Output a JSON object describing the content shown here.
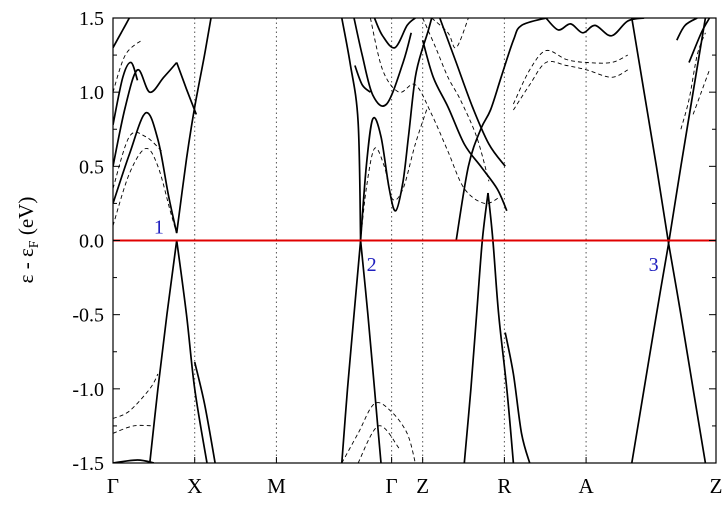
{
  "chart_data": {
    "type": "line",
    "title": "",
    "xlabel": "",
    "ylabel": "ε - ε",
    "ylabel_sub": "F",
    "ylabel_tail": " (eV)",
    "ylim": [
      -1.5,
      1.5
    ],
    "yticks": [
      1.5,
      1.0,
      0.5,
      0.0,
      -0.5,
      -1.0,
      -1.5
    ],
    "ytick_labels": [
      "1.5",
      "1.0",
      "0.5",
      "0.0",
      "-0.5",
      "-1.0",
      "-1.5"
    ],
    "xlim": [
      0,
      7.38
    ],
    "kpoints": [
      {
        "label": "Γ",
        "x": 0.0
      },
      {
        "label": "X",
        "x": 1.0
      },
      {
        "label": "M",
        "x": 2.0
      },
      {
        "label": "Γ",
        "x": 3.41
      },
      {
        "label": "Z",
        "x": 3.79
      },
      {
        "label": "R",
        "x": 4.79
      },
      {
        "label": "A",
        "x": 5.79
      },
      {
        "label": "Z",
        "x": 7.38
      }
    ],
    "fermi_level": 0.0,
    "fermi_color": "#e00000",
    "crossing_labels": [
      {
        "label": "1",
        "x": 0.72,
        "y": 0.02
      },
      {
        "label": "2",
        "x": 3.03,
        "y": -0.05
      },
      {
        "label": "3",
        "x": 6.8,
        "y": -0.05
      }
    ],
    "label_color": "#1f1fbf",
    "series": [
      {
        "style": "solid",
        "points": [
          [
            0.0,
            0.25
          ],
          [
            0.2,
            0.58
          ],
          [
            0.4,
            0.86
          ],
          [
            0.55,
            0.68
          ],
          [
            0.68,
            0.3
          ],
          [
            0.78,
            0.05
          ]
        ]
      },
      {
        "style": "solid",
        "points": [
          [
            0.78,
            0.05
          ],
          [
            0.9,
            0.55
          ],
          [
            1.0,
            0.9
          ],
          [
            1.12,
            1.25
          ],
          [
            1.2,
            1.5
          ]
        ]
      },
      {
        "style": "solid",
        "points": [
          [
            0.0,
            0.5
          ],
          [
            0.15,
            0.9
          ],
          [
            0.3,
            1.15
          ],
          [
            0.45,
            1.0
          ],
          [
            0.62,
            1.1
          ],
          [
            0.78,
            1.2
          ]
        ]
      },
      {
        "style": "solid",
        "points": [
          [
            0.0,
            0.78
          ],
          [
            0.12,
            1.1
          ],
          [
            0.22,
            1.2
          ],
          [
            0.3,
            1.08
          ]
        ]
      },
      {
        "style": "solid",
        "points": [
          [
            0.78,
            1.2
          ],
          [
            0.9,
            1.02
          ],
          [
            1.02,
            0.85
          ]
        ]
      },
      {
        "style": "solid",
        "points": [
          [
            0.0,
            1.3
          ],
          [
            0.1,
            1.4
          ],
          [
            0.2,
            1.5
          ]
        ]
      },
      {
        "style": "solid",
        "points": [
          [
            0.78,
            0.0
          ],
          [
            0.9,
            -0.5
          ],
          [
            1.0,
            -1.0
          ],
          [
            1.15,
            -1.5
          ]
        ]
      },
      {
        "style": "solid",
        "points": [
          [
            0.78,
            0.0
          ],
          [
            0.66,
            -0.5
          ],
          [
            0.55,
            -1.0
          ],
          [
            0.45,
            -1.5
          ]
        ]
      },
      {
        "style": "solid",
        "points": [
          [
            1.0,
            -0.82
          ],
          [
            1.12,
            -1.1
          ],
          [
            1.25,
            -1.5
          ]
        ]
      },
      {
        "style": "solid",
        "points": [
          [
            0.0,
            -1.5
          ],
          [
            0.3,
            -1.48
          ],
          [
            0.5,
            -1.5
          ]
        ]
      },
      {
        "style": "solid",
        "points": [
          [
            3.03,
            0.0
          ],
          [
            3.12,
            -0.5
          ],
          [
            3.2,
            -1.0
          ],
          [
            3.28,
            -1.5
          ]
        ]
      },
      {
        "style": "solid",
        "points": [
          [
            3.03,
            0.0
          ],
          [
            2.95,
            -0.5
          ],
          [
            2.87,
            -1.0
          ],
          [
            2.8,
            -1.5
          ]
        ]
      },
      {
        "style": "solid",
        "points": [
          [
            3.03,
            0.0
          ],
          [
            3.1,
            0.5
          ],
          [
            3.18,
            0.82
          ],
          [
            3.28,
            0.7
          ],
          [
            3.38,
            0.35
          ],
          [
            3.46,
            0.2
          ],
          [
            3.55,
            0.4
          ],
          [
            3.62,
            0.72
          ],
          [
            3.7,
            1.1
          ],
          [
            3.79,
            1.3
          ]
        ]
      },
      {
        "style": "solid",
        "points": [
          [
            2.8,
            1.5
          ],
          [
            2.9,
            1.2
          ],
          [
            3.0,
            0.8
          ],
          [
            3.03,
            0.0
          ]
        ]
      },
      {
        "style": "solid",
        "points": [
          [
            2.95,
            1.5
          ],
          [
            3.05,
            1.25
          ],
          [
            3.18,
            0.98
          ],
          [
            3.35,
            0.92
          ],
          [
            3.55,
            1.2
          ],
          [
            3.65,
            1.4
          ]
        ]
      },
      {
        "style": "solid",
        "points": [
          [
            2.96,
            1.18
          ],
          [
            3.05,
            1.05
          ],
          [
            3.15,
            1.0
          ]
        ]
      },
      {
        "style": "solid",
        "points": [
          [
            3.2,
            1.5
          ],
          [
            3.3,
            1.38
          ],
          [
            3.45,
            1.3
          ],
          [
            3.6,
            1.45
          ],
          [
            3.7,
            1.5
          ]
        ]
      },
      {
        "style": "solid",
        "points": [
          [
            3.79,
            1.3
          ],
          [
            3.85,
            1.4
          ],
          [
            3.9,
            1.5
          ]
        ]
      },
      {
        "style": "solid",
        "points": [
          [
            3.79,
            1.35
          ],
          [
            3.92,
            1.1
          ],
          [
            4.1,
            0.9
          ],
          [
            4.3,
            0.65
          ],
          [
            4.5,
            0.5
          ],
          [
            4.7,
            0.35
          ],
          [
            4.82,
            0.2
          ]
        ]
      },
      {
        "style": "solid",
        "points": [
          [
            4.59,
            0.32
          ],
          [
            4.65,
            0.0
          ],
          [
            4.72,
            -0.5
          ],
          [
            4.82,
            -1.0
          ],
          [
            4.9,
            -1.5
          ]
        ]
      },
      {
        "style": "solid",
        "points": [
          [
            4.59,
            0.32
          ],
          [
            4.52,
            0.0
          ],
          [
            4.45,
            -0.5
          ],
          [
            4.38,
            -1.0
          ],
          [
            4.3,
            -1.5
          ]
        ]
      },
      {
        "style": "solid",
        "points": [
          [
            4.2,
            0.0
          ],
          [
            4.35,
            0.5
          ],
          [
            4.5,
            0.75
          ],
          [
            4.62,
            0.88
          ],
          [
            4.75,
            1.1
          ],
          [
            4.9,
            1.35
          ],
          [
            5.0,
            1.45
          ],
          [
            5.3,
            1.5
          ]
        ]
      },
      {
        "style": "solid",
        "points": [
          [
            4.0,
            1.5
          ],
          [
            4.2,
            1.2
          ],
          [
            4.4,
            0.9
          ],
          [
            4.6,
            0.65
          ],
          [
            4.8,
            0.5
          ]
        ]
      },
      {
        "style": "solid",
        "points": [
          [
            5.3,
            1.5
          ],
          [
            5.45,
            1.42
          ],
          [
            5.6,
            1.46
          ],
          [
            5.75,
            1.4
          ],
          [
            5.9,
            1.45
          ],
          [
            6.1,
            1.38
          ],
          [
            6.3,
            1.48
          ],
          [
            6.5,
            1.5
          ]
        ]
      },
      {
        "style": "solid",
        "points": [
          [
            4.8,
            -0.62
          ],
          [
            4.9,
            -0.9
          ],
          [
            5.0,
            -1.3
          ],
          [
            5.1,
            -1.5
          ]
        ]
      },
      {
        "style": "solid",
        "points": [
          [
            6.8,
            -0.02
          ],
          [
            6.95,
            -0.5
          ],
          [
            7.1,
            -1.0
          ],
          [
            7.25,
            -1.5
          ]
        ]
      },
      {
        "style": "solid",
        "points": [
          [
            6.8,
            -0.02
          ],
          [
            6.65,
            0.5
          ],
          [
            6.5,
            1.0
          ],
          [
            6.35,
            1.5
          ]
        ]
      },
      {
        "style": "solid",
        "points": [
          [
            6.8,
            -0.02
          ],
          [
            6.65,
            -0.5
          ],
          [
            6.5,
            -1.0
          ],
          [
            6.35,
            -1.5
          ]
        ]
      },
      {
        "style": "solid",
        "points": [
          [
            6.8,
            -0.02
          ],
          [
            6.95,
            0.5
          ],
          [
            7.1,
            1.0
          ],
          [
            7.25,
            1.5
          ]
        ]
      },
      {
        "style": "solid",
        "points": [
          [
            6.9,
            1.35
          ],
          [
            7.0,
            1.45
          ],
          [
            7.15,
            1.5
          ]
        ]
      },
      {
        "style": "solid",
        "points": [
          [
            7.05,
            1.2
          ],
          [
            7.2,
            1.4
          ],
          [
            7.3,
            1.5
          ]
        ]
      },
      {
        "style": "dashed",
        "points": [
          [
            0.0,
            0.1
          ],
          [
            0.2,
            0.45
          ],
          [
            0.4,
            0.62
          ],
          [
            0.55,
            0.5
          ],
          [
            0.7,
            0.2
          ],
          [
            0.78,
            0.05
          ]
        ]
      },
      {
        "style": "dashed",
        "points": [
          [
            0.0,
            0.35
          ],
          [
            0.2,
            0.7
          ],
          [
            0.4,
            0.7
          ],
          [
            0.6,
            0.6
          ]
        ]
      },
      {
        "style": "dashed",
        "points": [
          [
            0.0,
            1.0
          ],
          [
            0.15,
            1.25
          ],
          [
            0.35,
            1.35
          ]
        ]
      },
      {
        "style": "dashed",
        "points": [
          [
            0.0,
            -1.2
          ],
          [
            0.2,
            -1.15
          ],
          [
            0.45,
            -1.0
          ],
          [
            0.55,
            -0.9
          ]
        ]
      },
      {
        "style": "dashed",
        "points": [
          [
            0.0,
            -1.3
          ],
          [
            0.25,
            -1.25
          ],
          [
            0.5,
            -1.25
          ]
        ]
      },
      {
        "style": "dashed",
        "points": [
          [
            2.8,
            -1.5
          ],
          [
            3.0,
            -1.3
          ],
          [
            3.2,
            -1.1
          ],
          [
            3.4,
            -1.15
          ],
          [
            3.6,
            -1.3
          ],
          [
            3.7,
            -1.5
          ]
        ]
      },
      {
        "style": "dashed",
        "points": [
          [
            3.0,
            -1.5
          ],
          [
            3.25,
            -1.25
          ],
          [
            3.5,
            -1.4
          ]
        ]
      },
      {
        "style": "dashed",
        "points": [
          [
            3.03,
            0.0
          ],
          [
            3.1,
            0.35
          ],
          [
            3.2,
            0.62
          ],
          [
            3.32,
            0.5
          ],
          [
            3.42,
            0.28
          ],
          [
            3.55,
            0.35
          ],
          [
            3.7,
            0.65
          ],
          [
            3.85,
            0.9
          ]
        ]
      },
      {
        "style": "dashed",
        "points": [
          [
            3.15,
            1.5
          ],
          [
            3.3,
            1.15
          ],
          [
            3.5,
            1.0
          ],
          [
            3.7,
            1.05
          ],
          [
            3.9,
            0.85
          ],
          [
            4.1,
            0.6
          ],
          [
            4.3,
            0.35
          ],
          [
            4.55,
            0.25
          ],
          [
            4.75,
            0.3
          ]
        ]
      },
      {
        "style": "dashed",
        "points": [
          [
            3.79,
            1.5
          ],
          [
            3.95,
            1.3
          ],
          [
            4.1,
            1.1
          ],
          [
            4.25,
            0.95
          ],
          [
            4.45,
            0.7
          ],
          [
            4.6,
            0.4
          ]
        ]
      },
      {
        "style": "dashed",
        "points": [
          [
            3.9,
            1.5
          ],
          [
            4.1,
            1.4
          ],
          [
            4.2,
            1.3
          ],
          [
            4.35,
            1.5
          ]
        ]
      },
      {
        "style": "dashed",
        "points": [
          [
            4.9,
            0.88
          ],
          [
            5.1,
            1.05
          ],
          [
            5.3,
            1.2
          ],
          [
            5.55,
            1.18
          ],
          [
            5.8,
            1.15
          ],
          [
            6.1,
            1.1
          ],
          [
            6.3,
            1.15
          ]
        ]
      },
      {
        "style": "dashed",
        "points": [
          [
            4.9,
            0.92
          ],
          [
            5.1,
            1.15
          ],
          [
            5.3,
            1.28
          ],
          [
            5.55,
            1.22
          ],
          [
            5.8,
            1.2
          ],
          [
            6.1,
            1.2
          ],
          [
            6.3,
            1.25
          ]
        ]
      },
      {
        "style": "dashed",
        "points": [
          [
            6.95,
            0.75
          ],
          [
            7.05,
            0.95
          ],
          [
            7.15,
            1.25
          ],
          [
            7.25,
            1.4
          ]
        ]
      },
      {
        "style": "dashed",
        "points": [
          [
            7.1,
            0.85
          ],
          [
            7.2,
            1.0
          ],
          [
            7.3,
            1.15
          ]
        ]
      }
    ]
  }
}
